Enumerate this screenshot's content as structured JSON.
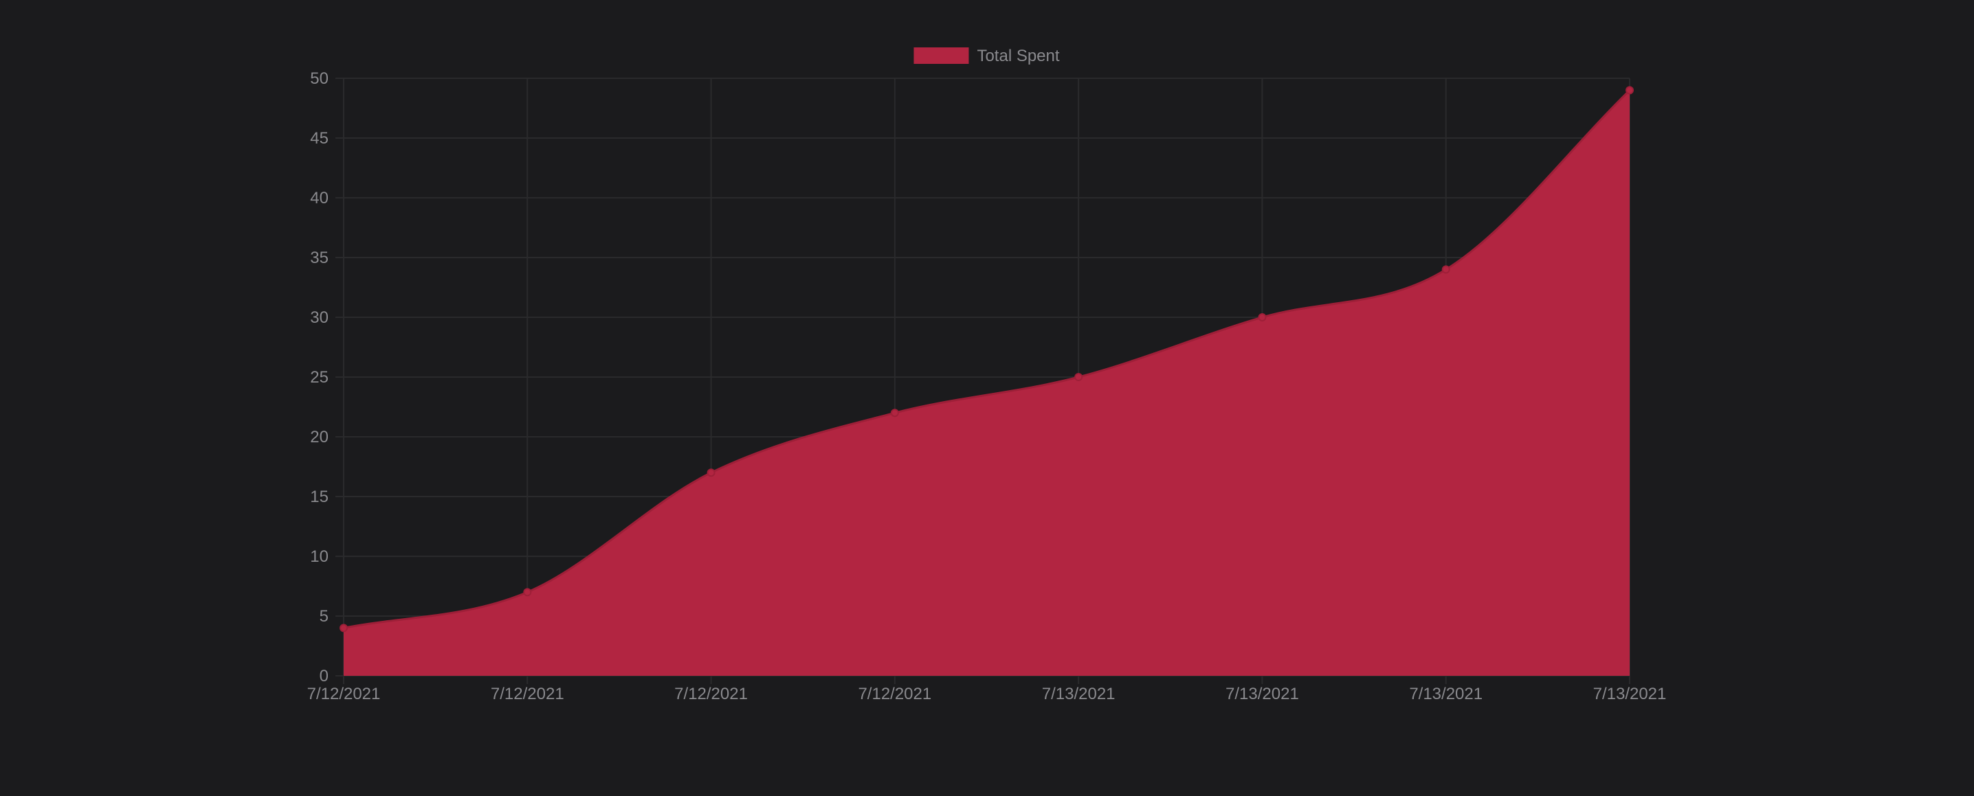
{
  "chart_data": {
    "type": "area",
    "categories": [
      "7/12/2021",
      "7/12/2021",
      "7/12/2021",
      "7/12/2021",
      "7/13/2021",
      "7/13/2021",
      "7/13/2021",
      "7/13/2021"
    ],
    "series": [
      {
        "name": "Total Spent",
        "values": [
          4,
          7,
          17,
          22,
          25,
          30,
          34,
          49
        ]
      }
    ],
    "ylim": [
      0,
      50
    ],
    "yticks": [
      0,
      5,
      10,
      15,
      20,
      25,
      30,
      35,
      40,
      45,
      50
    ],
    "grid": true,
    "legend_position": "top-center",
    "colors": {
      "background": "#1b1b1d",
      "fill": "#b22541",
      "line": "#9e1f38",
      "point": "#b22541",
      "grid": "#2a2a2c",
      "tick_text": "#8a8a8e",
      "legend_text": "#8a8a8e"
    }
  }
}
